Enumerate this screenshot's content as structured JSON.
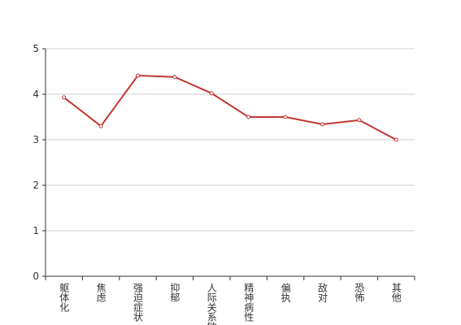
{
  "chart_data": {
    "type": "line",
    "categories": [
      "躯体化",
      "焦虑",
      "强迫症状",
      "抑郁",
      "人际关系敏感",
      "精神病性",
      "偏执",
      "敌对",
      "恐怖",
      "其他"
    ],
    "values": [
      3.93,
      3.3,
      4.41,
      4.38,
      4.02,
      3.5,
      3.5,
      3.34,
      3.43,
      3.0
    ],
    "color": "#c23531",
    "ylim": [
      0,
      5
    ],
    "yticks": [
      0,
      1,
      2,
      3,
      4,
      5
    ],
    "grid": true
  }
}
